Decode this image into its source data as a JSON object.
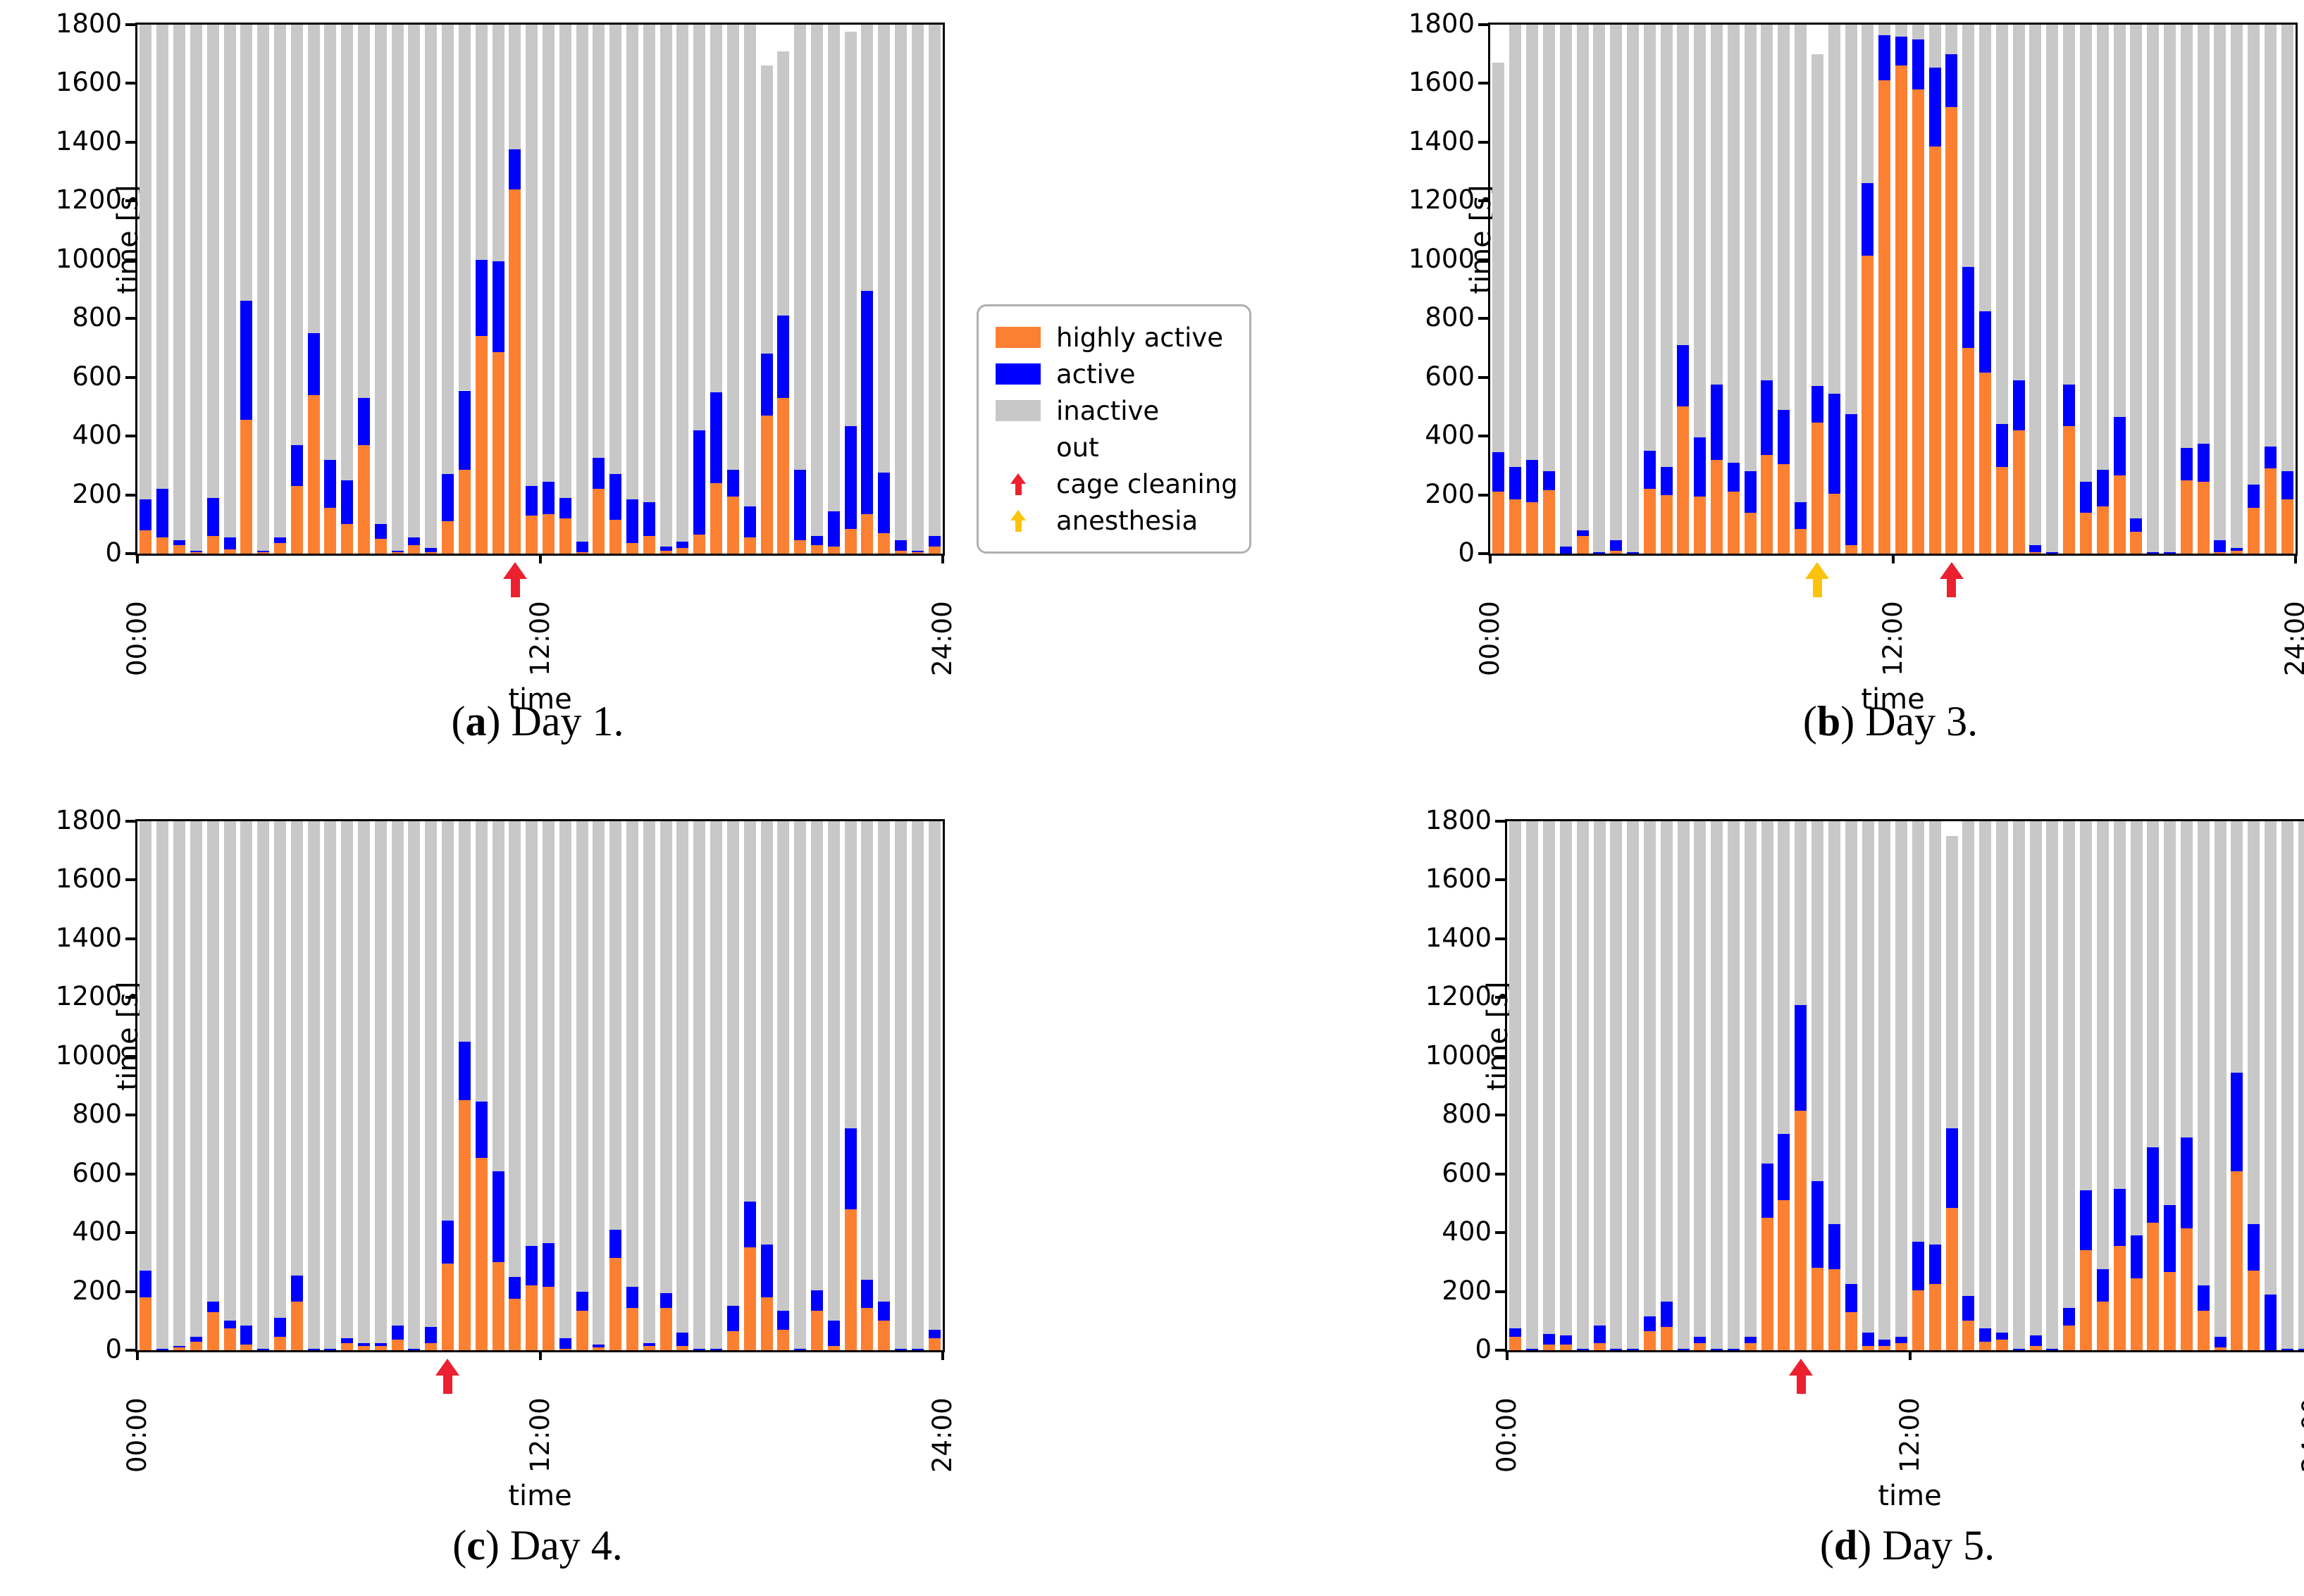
{
  "figure_bg": "#ffffff",
  "colors": {
    "highly_active": "#FC8032",
    "active": "#0000FF",
    "inactive": "#C8C8C8",
    "out": "#FFFFFF",
    "cage_cleaning_arrow": "#EB2130",
    "anesthesia_arrow": "#FCC30B",
    "axis": "#000000"
  },
  "legend": {
    "items": [
      {
        "kind": "swatch",
        "color_key": "highly_active",
        "label": "highly active"
      },
      {
        "kind": "swatch",
        "color_key": "active",
        "label": "active"
      },
      {
        "kind": "swatch",
        "color_key": "inactive",
        "label": "inactive"
      },
      {
        "kind": "none",
        "label": "out"
      },
      {
        "kind": "arrow",
        "color_key": "cage_cleaning_arrow",
        "label": "cage cleaning"
      },
      {
        "kind": "arrow",
        "color_key": "anesthesia_arrow",
        "label": "anesthesia"
      }
    ]
  },
  "axes": {
    "ylabel": "time [s]",
    "xlabel": "time",
    "ymax": 1800,
    "y_ticks": [
      0,
      200,
      400,
      600,
      800,
      1000,
      1200,
      1400,
      1600,
      1800
    ],
    "x_ticks": [
      {
        "label": "00:00",
        "frac": 0.0
      },
      {
        "label": "12:00",
        "frac": 0.5
      },
      {
        "label": "24:00",
        "frac": 1.0
      }
    ]
  },
  "chart_data": [
    {
      "id": "a",
      "type": "bar",
      "stacked": true,
      "caption_open": "(",
      "caption_letter": "a",
      "caption_close": ") ",
      "caption_label": "Day 1.",
      "bins": 48,
      "bin_minutes": 30,
      "x_start": "00:00",
      "x_end": "24:00",
      "ylim": [
        0,
        1800
      ],
      "series": [
        {
          "name": "highly active",
          "values": [
            80,
            55,
            30,
            5,
            60,
            15,
            455,
            5,
            35,
            230,
            540,
            155,
            100,
            370,
            50,
            5,
            30,
            5,
            110,
            285,
            740,
            685,
            1240,
            130,
            135,
            120,
            5,
            220,
            115,
            35,
            60,
            10,
            20,
            65,
            240,
            195,
            55,
            470,
            530,
            45,
            30,
            25,
            85,
            135,
            70,
            10,
            5,
            25
          ]
        },
        {
          "name": "active",
          "values": [
            105,
            165,
            15,
            5,
            130,
            40,
            405,
            5,
            20,
            140,
            210,
            165,
            150,
            160,
            50,
            5,
            25,
            15,
            160,
            270,
            260,
            310,
            135,
            100,
            110,
            70,
            35,
            105,
            155,
            150,
            115,
            15,
            20,
            355,
            310,
            90,
            105,
            210,
            280,
            240,
            30,
            120,
            350,
            760,
            205,
            35,
            5,
            35
          ]
        },
        {
          "name": "inactive",
          "values": [
            1615,
            1580,
            1755,
            1790,
            1610,
            1745,
            940,
            1790,
            1745,
            1430,
            1050,
            1480,
            1550,
            1270,
            1700,
            1790,
            1745,
            1780,
            1530,
            1245,
            800,
            805,
            425,
            1570,
            1555,
            1610,
            1760,
            1475,
            1530,
            1615,
            1625,
            1775,
            1760,
            1380,
            1250,
            1515,
            1640,
            980,
            900,
            1515,
            1740,
            1655,
            1340,
            905,
            1525,
            1755,
            1790,
            1740
          ]
        }
      ],
      "annotations": [
        {
          "type": "cage_cleaning",
          "bin": 23,
          "time": "11:00-11:30",
          "frac": 0.469
        }
      ]
    },
    {
      "id": "b",
      "type": "bar",
      "stacked": true,
      "caption_open": "(",
      "caption_letter": "b",
      "caption_close": ") ",
      "caption_label": "Day 3.",
      "bins": 48,
      "bin_minutes": 30,
      "x_start": "00:00",
      "x_end": "24:00",
      "ylim": [
        0,
        1800
      ],
      "series": [
        {
          "name": "highly active",
          "values": [
            210,
            185,
            175,
            215,
            0,
            60,
            0,
            10,
            0,
            220,
            200,
            500,
            195,
            320,
            210,
            140,
            335,
            305,
            85,
            445,
            205,
            30,
            1015,
            1610,
            1660,
            1580,
            1385,
            1520,
            700,
            615,
            295,
            420,
            5,
            0,
            435,
            140,
            160,
            265,
            75,
            0,
            0,
            250,
            245,
            5,
            10,
            155,
            290,
            185
          ]
        },
        {
          "name": "active",
          "values": [
            135,
            110,
            145,
            65,
            25,
            20,
            5,
            35,
            5,
            130,
            95,
            210,
            200,
            255,
            100,
            140,
            255,
            185,
            90,
            125,
            340,
            445,
            245,
            155,
            100,
            170,
            270,
            180,
            275,
            210,
            145,
            170,
            25,
            5,
            140,
            105,
            125,
            200,
            45,
            5,
            5,
            110,
            130,
            40,
            10,
            80,
            75,
            95
          ]
        },
        {
          "name": "inactive",
          "values": [
            1325,
            1505,
            1480,
            1520,
            1775,
            1720,
            1795,
            1755,
            1795,
            1450,
            1505,
            1090,
            1405,
            1225,
            1490,
            1520,
            1210,
            1310,
            1625,
            1130,
            1255,
            1325,
            540,
            35,
            40,
            50,
            145,
            100,
            825,
            975,
            1360,
            1210,
            1770,
            1795,
            1225,
            1555,
            1515,
            1335,
            1680,
            1795,
            1795,
            1440,
            1425,
            1755,
            1780,
            1565,
            1435,
            1520
          ]
        }
      ],
      "annotations": [
        {
          "type": "anesthesia",
          "bin": 20,
          "time": "09:30-10:00",
          "frac": 0.406
        },
        {
          "type": "cage_cleaning",
          "bin": 28,
          "time": "13:30-14:00",
          "frac": 0.573
        }
      ]
    },
    {
      "id": "c",
      "type": "bar",
      "stacked": true,
      "caption_open": "(",
      "caption_letter": "c",
      "caption_close": ") ",
      "caption_label": "Day 4.",
      "bins": 48,
      "bin_minutes": 30,
      "x_start": "00:00",
      "x_end": "24:00",
      "ylim": [
        0,
        1800
      ],
      "series": [
        {
          "name": "highly active",
          "values": [
            180,
            0,
            10,
            30,
            130,
            75,
            20,
            0,
            45,
            165,
            0,
            0,
            25,
            15,
            15,
            35,
            0,
            25,
            295,
            850,
            655,
            300,
            175,
            220,
            215,
            5,
            135,
            10,
            315,
            145,
            15,
            145,
            15,
            0,
            0,
            65,
            350,
            180,
            70,
            0,
            135,
            15,
            480,
            145,
            100,
            0,
            0,
            40
          ]
        },
        {
          "name": "active",
          "values": [
            90,
            5,
            5,
            15,
            35,
            25,
            65,
            5,
            65,
            90,
            5,
            5,
            15,
            10,
            10,
            50,
            5,
            55,
            145,
            200,
            190,
            310,
            75,
            135,
            150,
            35,
            65,
            10,
            95,
            70,
            10,
            50,
            45,
            5,
            5,
            85,
            155,
            180,
            65,
            5,
            70,
            85,
            275,
            95,
            65,
            5,
            5,
            30
          ]
        },
        {
          "name": "inactive",
          "values": [
            1530,
            1795,
            1785,
            1755,
            1635,
            1700,
            1715,
            1795,
            1690,
            1545,
            1795,
            1795,
            1760,
            1775,
            1775,
            1715,
            1795,
            1720,
            1360,
            750,
            955,
            1190,
            1550,
            1445,
            1435,
            1760,
            1600,
            1780,
            1390,
            1585,
            1775,
            1605,
            1740,
            1795,
            1795,
            1650,
            1295,
            1440,
            1665,
            1795,
            1595,
            1700,
            1045,
            1560,
            1635,
            1795,
            1795,
            1730
          ]
        }
      ],
      "annotations": [
        {
          "type": "cage_cleaning",
          "bin": 19,
          "time": "09:00-09:30",
          "frac": 0.385
        }
      ]
    },
    {
      "id": "d",
      "type": "bar",
      "stacked": true,
      "caption_open": "(",
      "caption_letter": "d",
      "caption_close": ") ",
      "caption_label": "Day 5.",
      "bins": 48,
      "bin_minutes": 30,
      "x_start": "00:00",
      "x_end": "24:00",
      "ylim": [
        0,
        1800
      ],
      "series": [
        {
          "name": "highly active",
          "values": [
            45,
            0,
            20,
            20,
            0,
            25,
            0,
            0,
            65,
            80,
            0,
            25,
            0,
            0,
            25,
            450,
            510,
            815,
            280,
            275,
            130,
            15,
            15,
            25,
            205,
            225,
            485,
            100,
            30,
            35,
            0,
            15,
            0,
            85,
            340,
            165,
            355,
            245,
            435,
            265,
            415,
            135,
            10,
            610,
            270,
            0,
            0,
            0
          ]
        },
        {
          "name": "active",
          "values": [
            30,
            5,
            35,
            30,
            5,
            60,
            5,
            5,
            50,
            85,
            5,
            20,
            5,
            5,
            20,
            185,
            225,
            360,
            295,
            155,
            95,
            45,
            20,
            20,
            165,
            135,
            270,
            85,
            45,
            25,
            5,
            35,
            5,
            60,
            205,
            110,
            195,
            145,
            255,
            230,
            310,
            85,
            35,
            335,
            160,
            190,
            5,
            5
          ]
        },
        {
          "name": "inactive",
          "values": [
            1725,
            1795,
            1745,
            1750,
            1795,
            1715,
            1795,
            1795,
            1685,
            1635,
            1795,
            1755,
            1795,
            1795,
            1755,
            1165,
            1065,
            625,
            1225,
            1370,
            1575,
            1740,
            1765,
            1755,
            1430,
            1440,
            995,
            1615,
            1725,
            1740,
            1795,
            1750,
            1795,
            1655,
            1255,
            1525,
            1250,
            1410,
            1110,
            1305,
            1075,
            1580,
            1755,
            855,
            1370,
            1610,
            1795,
            1795
          ]
        }
      ],
      "annotations": [
        {
          "type": "cage_cleaning",
          "bin": 18,
          "time": "08:30-09:00",
          "frac": 0.365
        }
      ]
    }
  ],
  "layout_note_visible_text_only": true
}
